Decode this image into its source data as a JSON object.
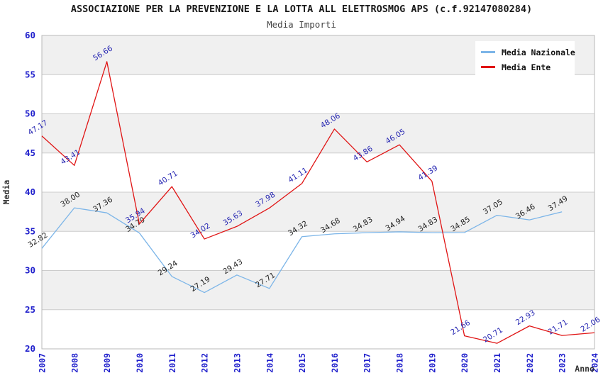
{
  "header": {
    "title": "ASSOCIAZIONE PER LA PREVENZIONE E LA LOTTA ALL ELETTROSMOG APS (c.f.92147080284)",
    "subtitle": "Media Importi"
  },
  "chart_data": {
    "type": "line",
    "x": [
      2007,
      2008,
      2009,
      2010,
      2011,
      2012,
      2013,
      2014,
      2015,
      2016,
      2017,
      2018,
      2019,
      2020,
      2021,
      2022,
      2023,
      2024
    ],
    "series": [
      {
        "name": "Media Nazionale",
        "color": "#7CB5E8",
        "label_color": "#222222",
        "values": [
          32.82,
          38.0,
          37.36,
          34.79,
          29.24,
          27.19,
          29.43,
          27.71,
          34.32,
          34.68,
          34.83,
          34.94,
          34.83,
          34.85,
          37.05,
          36.46,
          37.49,
          null
        ]
      },
      {
        "name": "Media Ente",
        "color": "#E01414",
        "label_color": "#2626B2",
        "values": [
          47.17,
          43.41,
          56.66,
          35.94,
          40.71,
          34.02,
          35.63,
          37.98,
          41.11,
          48.06,
          43.86,
          46.05,
          41.39,
          21.66,
          20.71,
          22.93,
          21.71,
          22.06
        ]
      }
    ],
    "xlabel": "Anno",
    "ylabel": "Media",
    "ylim": [
      20,
      60
    ],
    "ytick_step": 5,
    "grid": true,
    "legend_position": "top-right",
    "colors": {
      "axis_tick": "#2020CC",
      "grid_line": "#CCCCCC",
      "plot_border": "#B8B8B8",
      "band_fill": "#F0F0F0",
      "background": "#FFFFFF"
    }
  }
}
